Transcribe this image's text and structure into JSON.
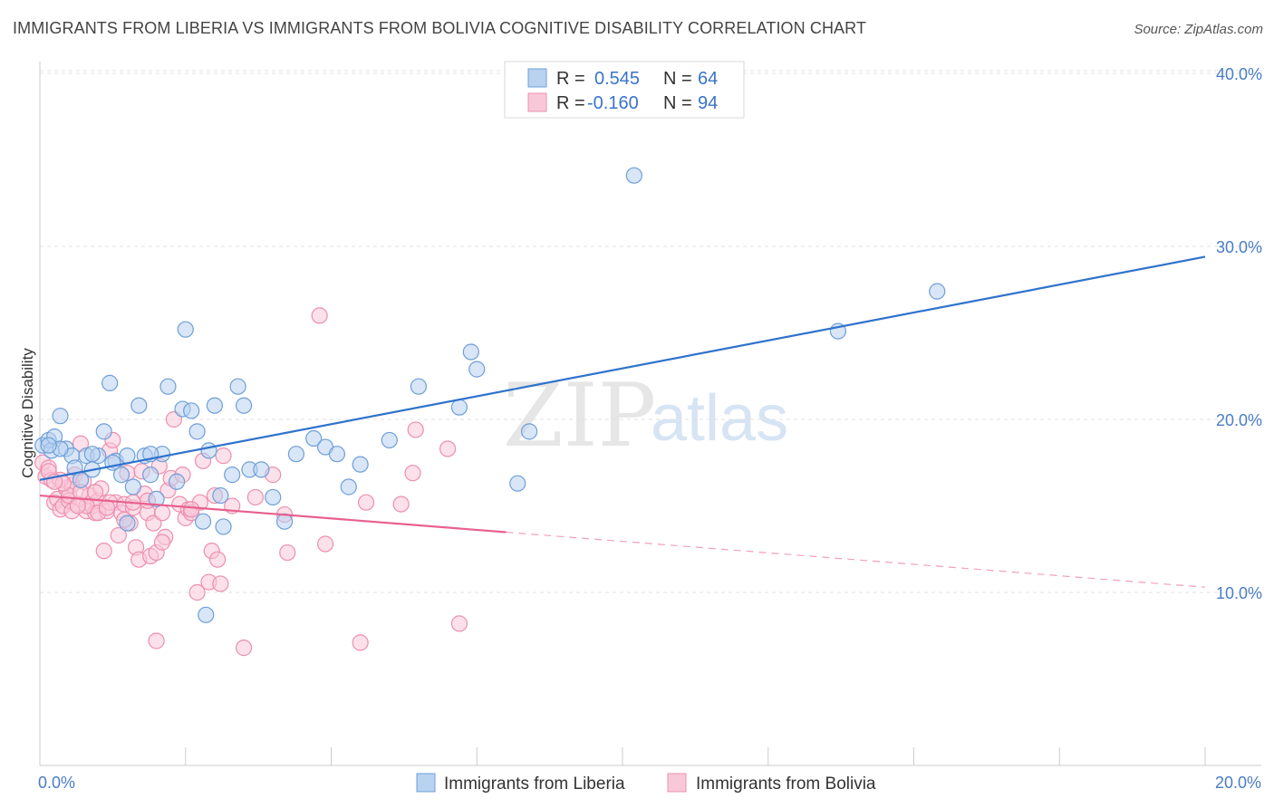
{
  "title": "IMMIGRANTS FROM LIBERIA VS IMMIGRANTS FROM BOLIVIA COGNITIVE DISABILITY CORRELATION CHART",
  "source": "Source: ZipAtlas.com",
  "watermark": {
    "zip": "ZIP",
    "atlas": "atlas"
  },
  "colors": {
    "liberia_fill": "#b8d2f0",
    "liberia_stroke": "#6f9fd8",
    "liberia_line": "#2f72cc",
    "bolivia_fill": "#f9c8d8",
    "bolivia_stroke": "#ec8fb0",
    "bolivia_line": "#e8608d",
    "grid": "#e0e0e0",
    "axis_text": "#4a7cc7"
  },
  "legend": {
    "liberia": {
      "r_label": "R =",
      "r_value": "0.545",
      "n_label": "N =",
      "n_value": "64"
    },
    "bolivia": {
      "r_label": "R =",
      "r_value": "-0.160",
      "n_label": "N =",
      "n_value": "94"
    }
  },
  "chart_data": {
    "type": "scatter",
    "title": "IMMIGRANTS FROM LIBERIA VS IMMIGRANTS FROM BOLIVIA COGNITIVE DISABILITY CORRELATION CHART",
    "xlabel": "",
    "ylabel": "Cognitive Disability",
    "xlim": [
      0,
      20
    ],
    "ylim": [
      0,
      40
    ],
    "x_tick_labels": [
      "0.0%",
      "20.0%"
    ],
    "y_ticks": [
      10,
      20,
      30,
      40
    ],
    "y_tick_labels": [
      "10.0%",
      "20.0%",
      "30.0%",
      "40.0%"
    ],
    "grid": true,
    "legend_position": "top-center",
    "series": [
      {
        "name": "Immigrants from Liberia",
        "trend": {
          "x": [
            0,
            20
          ],
          "y": [
            16.5,
            29.4
          ],
          "dashed_from": null
        },
        "points": [
          [
            0.05,
            18.5
          ],
          [
            0.15,
            18.8
          ],
          [
            0.2,
            18.2
          ],
          [
            0.25,
            19.0
          ],
          [
            0.35,
            20.2
          ],
          [
            0.45,
            18.3
          ],
          [
            0.55,
            17.9
          ],
          [
            0.6,
            17.2
          ],
          [
            0.7,
            16.5
          ],
          [
            0.8,
            17.9
          ],
          [
            0.9,
            17.1
          ],
          [
            1.0,
            17.9
          ],
          [
            1.1,
            19.3
          ],
          [
            1.2,
            22.1
          ],
          [
            1.3,
            17.6
          ],
          [
            1.4,
            16.8
          ],
          [
            1.5,
            17.9
          ],
          [
            1.6,
            16.1
          ],
          [
            1.7,
            20.8
          ],
          [
            1.8,
            17.9
          ],
          [
            1.9,
            16.8
          ],
          [
            2.0,
            15.4
          ],
          [
            2.1,
            18.0
          ],
          [
            2.2,
            21.9
          ],
          [
            2.35,
            16.4
          ],
          [
            2.45,
            20.6
          ],
          [
            2.5,
            25.2
          ],
          [
            2.6,
            20.5
          ],
          [
            2.7,
            19.3
          ],
          [
            2.8,
            14.1
          ],
          [
            2.9,
            18.2
          ],
          [
            3.0,
            20.8
          ],
          [
            3.1,
            15.6
          ],
          [
            3.15,
            13.8
          ],
          [
            3.3,
            16.8
          ],
          [
            3.4,
            21.9
          ],
          [
            3.5,
            20.8
          ],
          [
            3.6,
            17.1
          ],
          [
            3.8,
            17.1
          ],
          [
            4.0,
            15.5
          ],
          [
            4.2,
            14.1
          ],
          [
            4.4,
            18.0
          ],
          [
            4.7,
            18.9
          ],
          [
            4.9,
            18.4
          ],
          [
            5.1,
            18.0
          ],
          [
            5.3,
            16.1
          ],
          [
            5.5,
            17.4
          ],
          [
            6.0,
            18.8
          ],
          [
            6.5,
            21.9
          ],
          [
            7.2,
            20.7
          ],
          [
            7.4,
            23.9
          ],
          [
            7.5,
            22.9
          ],
          [
            8.2,
            16.3
          ],
          [
            8.4,
            19.3
          ],
          [
            10.2,
            34.1
          ],
          [
            13.7,
            25.1
          ],
          [
            15.4,
            27.4
          ],
          [
            2.85,
            8.7
          ],
          [
            1.5,
            14.0
          ],
          [
            0.9,
            18.0
          ],
          [
            1.25,
            17.5
          ],
          [
            0.35,
            18.3
          ],
          [
            1.9,
            18.0
          ],
          [
            0.15,
            18.5
          ]
        ]
      },
      {
        "name": "Immigrants from Bolivia",
        "trend": {
          "x": [
            0,
            20
          ],
          "y": [
            15.6,
            10.3
          ],
          "dashed_from": 8.0
        },
        "points": [
          [
            0.05,
            17.5
          ],
          [
            0.1,
            16.7
          ],
          [
            0.15,
            17.2
          ],
          [
            0.2,
            16.5
          ],
          [
            0.25,
            15.2
          ],
          [
            0.3,
            15.4
          ],
          [
            0.35,
            14.8
          ],
          [
            0.4,
            15.0
          ],
          [
            0.45,
            16.0
          ],
          [
            0.5,
            15.3
          ],
          [
            0.55,
            16.2
          ],
          [
            0.6,
            16.8
          ],
          [
            0.65,
            15.1
          ],
          [
            0.7,
            18.6
          ],
          [
            0.75,
            16.4
          ],
          [
            0.8,
            14.7
          ],
          [
            0.85,
            15.6
          ],
          [
            0.9,
            15.0
          ],
          [
            0.95,
            14.6
          ],
          [
            1.0,
            15.3
          ],
          [
            1.05,
            16.0
          ],
          [
            1.1,
            12.4
          ],
          [
            1.15,
            14.7
          ],
          [
            1.2,
            18.2
          ],
          [
            1.25,
            18.8
          ],
          [
            1.3,
            15.2
          ],
          [
            1.35,
            13.3
          ],
          [
            1.4,
            14.6
          ],
          [
            1.45,
            15.1
          ],
          [
            1.5,
            16.9
          ],
          [
            1.55,
            14.0
          ],
          [
            1.6,
            14.9
          ],
          [
            1.65,
            12.6
          ],
          [
            1.7,
            11.9
          ],
          [
            1.75,
            17.0
          ],
          [
            1.8,
            15.7
          ],
          [
            1.85,
            14.6
          ],
          [
            1.9,
            12.1
          ],
          [
            1.95,
            14.0
          ],
          [
            2.0,
            12.3
          ],
          [
            2.05,
            17.3
          ],
          [
            2.1,
            14.6
          ],
          [
            2.15,
            13.2
          ],
          [
            2.2,
            15.9
          ],
          [
            2.25,
            16.6
          ],
          [
            2.3,
            20.0
          ],
          [
            2.4,
            15.1
          ],
          [
            2.45,
            16.8
          ],
          [
            2.5,
            14.3
          ],
          [
            2.55,
            14.8
          ],
          [
            2.6,
            14.6
          ],
          [
            2.7,
            10.0
          ],
          [
            2.75,
            15.2
          ],
          [
            2.8,
            17.6
          ],
          [
            2.9,
            10.6
          ],
          [
            2.95,
            12.4
          ],
          [
            3.0,
            15.6
          ],
          [
            3.05,
            11.9
          ],
          [
            3.1,
            10.5
          ],
          [
            3.15,
            17.9
          ],
          [
            3.3,
            15.0
          ],
          [
            3.5,
            6.8
          ],
          [
            3.7,
            15.5
          ],
          [
            4.0,
            16.8
          ],
          [
            4.2,
            14.5
          ],
          [
            4.25,
            12.3
          ],
          [
            4.8,
            26.0
          ],
          [
            4.9,
            12.8
          ],
          [
            5.5,
            7.1
          ],
          [
            5.6,
            15.2
          ],
          [
            6.2,
            15.1
          ],
          [
            6.4,
            16.9
          ],
          [
            6.45,
            19.4
          ],
          [
            7.0,
            18.3
          ],
          [
            7.2,
            8.2
          ],
          [
            0.35,
            16.5
          ],
          [
            0.5,
            15.6
          ],
          [
            0.8,
            15.0
          ],
          [
            1.0,
            14.6
          ],
          [
            1.6,
            15.2
          ],
          [
            2.0,
            7.2
          ],
          [
            1.2,
            15.2
          ],
          [
            0.7,
            15.8
          ],
          [
            0.4,
            16.3
          ],
          [
            2.6,
            14.8
          ],
          [
            0.15,
            17.0
          ],
          [
            0.55,
            14.7
          ],
          [
            1.15,
            14.9
          ],
          [
            1.45,
            14.2
          ],
          [
            0.95,
            15.8
          ],
          [
            2.1,
            12.9
          ],
          [
            0.25,
            16.4
          ],
          [
            1.85,
            15.3
          ],
          [
            0.65,
            15.0
          ]
        ]
      }
    ]
  },
  "bottom_legend": {
    "liberia_label": "Immigrants from Liberia",
    "bolivia_label": "Immigrants from Bolivia"
  }
}
